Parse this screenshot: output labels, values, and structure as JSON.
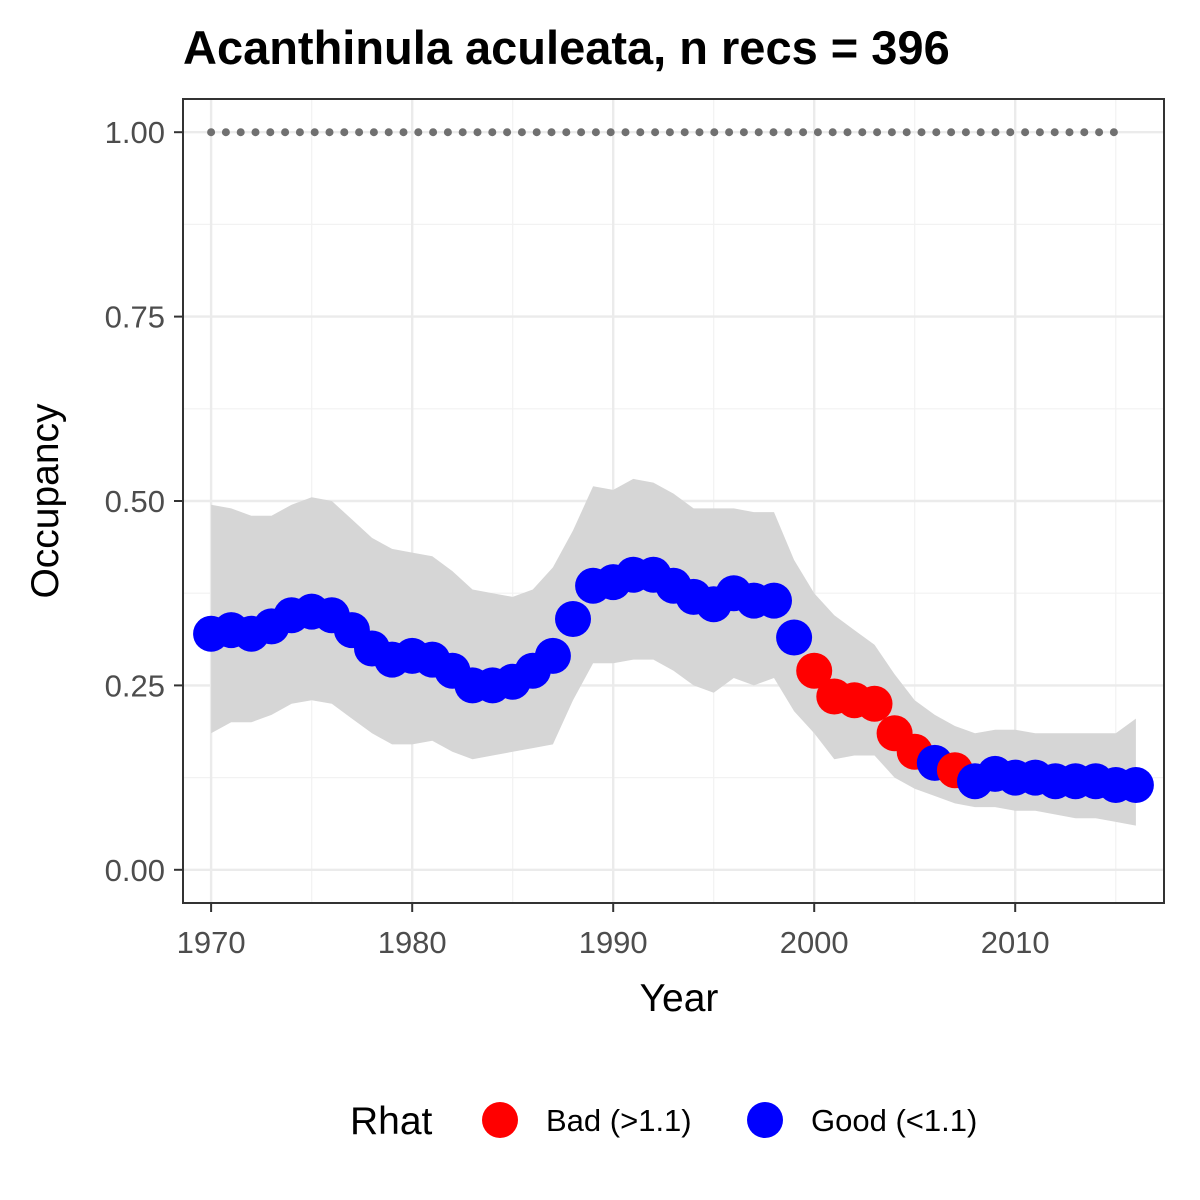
{
  "chart_data": {
    "type": "scatter",
    "title": "Acanthinula aculeata, n recs = 396",
    "xlabel": "Year",
    "ylabel": "Occupancy",
    "xlim": [
      1968.6,
      2017.4
    ],
    "ylim": [
      -0.045,
      1.045
    ],
    "x_ticks": [
      1970,
      1980,
      1990,
      2000,
      2010
    ],
    "x_tick_labels": [
      "1970",
      "1980",
      "1990",
      "2000",
      "2010"
    ],
    "y_ticks": [
      0,
      0.25,
      0.5,
      0.75,
      1.0
    ],
    "y_tick_labels": [
      "0.00",
      "0.25",
      "0.50",
      "0.75",
      "1.00"
    ],
    "grid": true,
    "legend": {
      "title": "Rhat",
      "position": "bottom",
      "items": [
        {
          "label": "Bad (>1.1)",
          "color": "#ff0000"
        },
        {
          "label": "Good (<1.1)",
          "color": "#0000ff"
        }
      ]
    },
    "colors": {
      "bad": "#ff0000",
      "good": "#0000ff",
      "ribbon": "#d6d6d6",
      "reference": "#707070"
    },
    "x": [
      1970,
      1971,
      1972,
      1973,
      1974,
      1975,
      1976,
      1977,
      1978,
      1979,
      1980,
      1981,
      1982,
      1983,
      1984,
      1985,
      1986,
      1987,
      1988,
      1989,
      1990,
      1991,
      1992,
      1993,
      1994,
      1995,
      1996,
      1997,
      1998,
      1999,
      2000,
      2001,
      2002,
      2003,
      2004,
      2005,
      2006,
      2007,
      2008,
      2009,
      2010,
      2011,
      2012,
      2013,
      2014,
      2015,
      2016
    ],
    "occupancy": [
      0.32,
      0.325,
      0.32,
      0.33,
      0.345,
      0.35,
      0.345,
      0.325,
      0.3,
      0.285,
      0.29,
      0.285,
      0.27,
      0.25,
      0.25,
      0.255,
      0.27,
      0.29,
      0.34,
      0.385,
      0.39,
      0.4,
      0.4,
      0.385,
      0.37,
      0.36,
      0.375,
      0.365,
      0.365,
      0.315,
      0.27,
      0.235,
      0.23,
      0.225,
      0.185,
      0.16,
      0.145,
      0.135,
      0.12,
      0.13,
      0.125,
      0.125,
      0.12,
      0.12,
      0.12,
      0.115,
      0.115
    ],
    "rhat": [
      "Good",
      "Good",
      "Good",
      "Good",
      "Good",
      "Good",
      "Good",
      "Good",
      "Good",
      "Good",
      "Good",
      "Good",
      "Good",
      "Good",
      "Good",
      "Good",
      "Good",
      "Good",
      "Good",
      "Good",
      "Good",
      "Good",
      "Good",
      "Good",
      "Good",
      "Good",
      "Good",
      "Good",
      "Good",
      "Good",
      "Bad",
      "Bad",
      "Bad",
      "Bad",
      "Bad",
      "Bad",
      "Good",
      "Bad",
      "Good",
      "Good",
      "Good",
      "Good",
      "Good",
      "Good",
      "Good",
      "Good",
      "Good"
    ],
    "lower": [
      0.185,
      0.2,
      0.2,
      0.21,
      0.225,
      0.23,
      0.225,
      0.205,
      0.185,
      0.17,
      0.17,
      0.175,
      0.16,
      0.15,
      0.155,
      0.16,
      0.165,
      0.17,
      0.23,
      0.28,
      0.28,
      0.285,
      0.285,
      0.27,
      0.25,
      0.24,
      0.26,
      0.25,
      0.26,
      0.215,
      0.185,
      0.15,
      0.155,
      0.155,
      0.125,
      0.11,
      0.1,
      0.09,
      0.085,
      0.085,
      0.08,
      0.08,
      0.075,
      0.07,
      0.07,
      0.065,
      0.06
    ],
    "upper": [
      0.495,
      0.49,
      0.48,
      0.48,
      0.495,
      0.505,
      0.5,
      0.475,
      0.45,
      0.435,
      0.43,
      0.425,
      0.405,
      0.38,
      0.375,
      0.37,
      0.38,
      0.41,
      0.46,
      0.52,
      0.515,
      0.53,
      0.525,
      0.51,
      0.49,
      0.49,
      0.49,
      0.485,
      0.485,
      0.42,
      0.375,
      0.345,
      0.325,
      0.305,
      0.265,
      0.23,
      0.21,
      0.195,
      0.185,
      0.19,
      0.19,
      0.185,
      0.185,
      0.185,
      0.185,
      0.185,
      0.205
    ],
    "reference_line": {
      "y": 1.0,
      "x_start": 1970,
      "x_end": 2015
    }
  }
}
